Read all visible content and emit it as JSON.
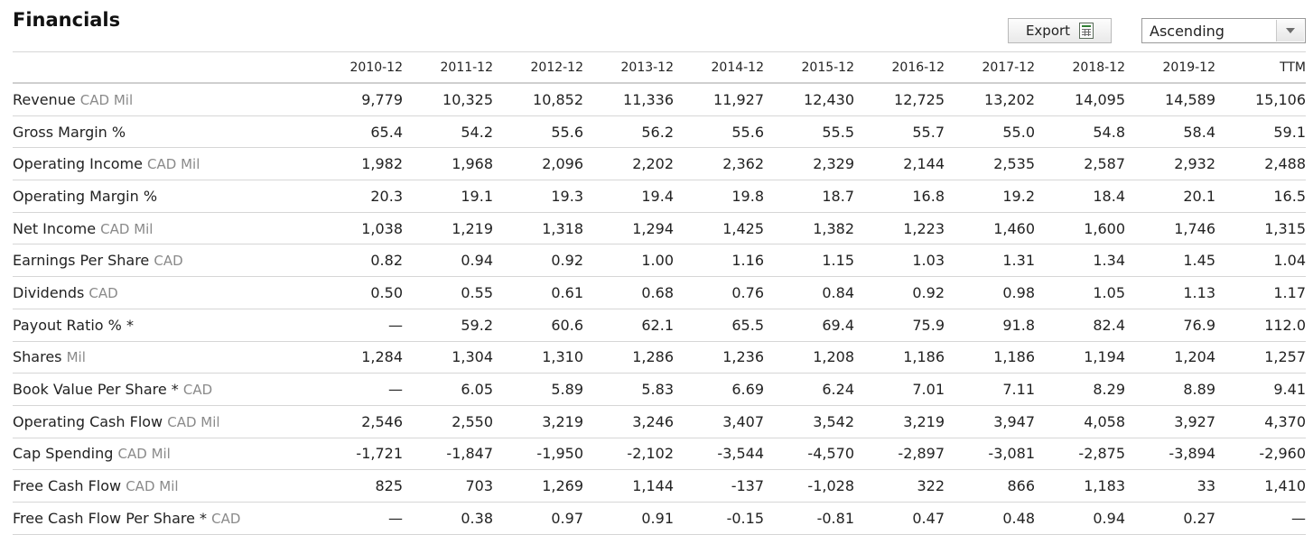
{
  "title": "Financials",
  "export": {
    "label": "Export",
    "icon": "spreadsheet-icon"
  },
  "sort": {
    "selected": "Ascending",
    "icon": "chevron-down-icon"
  },
  "columns": [
    "2010-12",
    "2011-12",
    "2012-12",
    "2013-12",
    "2014-12",
    "2015-12",
    "2016-12",
    "2017-12",
    "2018-12",
    "2019-12",
    "TTM"
  ],
  "rows": [
    {
      "label": "Revenue",
      "unit": "CAD Mil",
      "values": [
        "9,779",
        "10,325",
        "10,852",
        "11,336",
        "11,927",
        "12,430",
        "12,725",
        "13,202",
        "14,095",
        "14,589",
        "15,106"
      ]
    },
    {
      "label": "Gross Margin %",
      "unit": "",
      "values": [
        "65.4",
        "54.2",
        "55.6",
        "56.2",
        "55.6",
        "55.5",
        "55.7",
        "55.0",
        "54.8",
        "58.4",
        "59.1"
      ]
    },
    {
      "label": "Operating Income",
      "unit": "CAD Mil",
      "values": [
        "1,982",
        "1,968",
        "2,096",
        "2,202",
        "2,362",
        "2,329",
        "2,144",
        "2,535",
        "2,587",
        "2,932",
        "2,488"
      ]
    },
    {
      "label": "Operating Margin %",
      "unit": "",
      "values": [
        "20.3",
        "19.1",
        "19.3",
        "19.4",
        "19.8",
        "18.7",
        "16.8",
        "19.2",
        "18.4",
        "20.1",
        "16.5"
      ]
    },
    {
      "label": "Net Income",
      "unit": "CAD Mil",
      "values": [
        "1,038",
        "1,219",
        "1,318",
        "1,294",
        "1,425",
        "1,382",
        "1,223",
        "1,460",
        "1,600",
        "1,746",
        "1,315"
      ]
    },
    {
      "label": "Earnings Per Share",
      "unit": "CAD",
      "values": [
        "0.82",
        "0.94",
        "0.92",
        "1.00",
        "1.16",
        "1.15",
        "1.03",
        "1.31",
        "1.34",
        "1.45",
        "1.04"
      ]
    },
    {
      "label": "Dividends",
      "unit": "CAD",
      "values": [
        "0.50",
        "0.55",
        "0.61",
        "0.68",
        "0.76",
        "0.84",
        "0.92",
        "0.98",
        "1.05",
        "1.13",
        "1.17"
      ]
    },
    {
      "label": "Payout Ratio % *",
      "unit": "",
      "values": [
        "—",
        "59.2",
        "60.6",
        "62.1",
        "65.5",
        "69.4",
        "75.9",
        "91.8",
        "82.4",
        "76.9",
        "112.0"
      ]
    },
    {
      "label": "Shares",
      "unit": "Mil",
      "values": [
        "1,284",
        "1,304",
        "1,310",
        "1,286",
        "1,236",
        "1,208",
        "1,186",
        "1,186",
        "1,194",
        "1,204",
        "1,257"
      ]
    },
    {
      "label": "Book Value Per Share *",
      "unit": "CAD",
      "values": [
        "—",
        "6.05",
        "5.89",
        "5.83",
        "6.69",
        "6.24",
        "7.01",
        "7.11",
        "8.29",
        "8.89",
        "9.41"
      ]
    },
    {
      "label": "Operating Cash Flow",
      "unit": "CAD Mil",
      "values": [
        "2,546",
        "2,550",
        "3,219",
        "3,246",
        "3,407",
        "3,542",
        "3,219",
        "3,947",
        "4,058",
        "3,927",
        "4,370"
      ]
    },
    {
      "label": "Cap Spending",
      "unit": "CAD Mil",
      "values": [
        "-1,721",
        "-1,847",
        "-1,950",
        "-2,102",
        "-3,544",
        "-4,570",
        "-2,897",
        "-3,081",
        "-2,875",
        "-3,894",
        "-2,960"
      ]
    },
    {
      "label": "Free Cash Flow",
      "unit": "CAD Mil",
      "values": [
        "825",
        "703",
        "1,269",
        "1,144",
        "-137",
        "-1,028",
        "322",
        "866",
        "1,183",
        "33",
        "1,410"
      ]
    },
    {
      "label": "Free Cash Flow Per Share *",
      "unit": "CAD",
      "values": [
        "—",
        "0.38",
        "0.97",
        "0.91",
        "-0.15",
        "-0.81",
        "0.47",
        "0.48",
        "0.94",
        "0.27",
        "—"
      ]
    }
  ]
}
